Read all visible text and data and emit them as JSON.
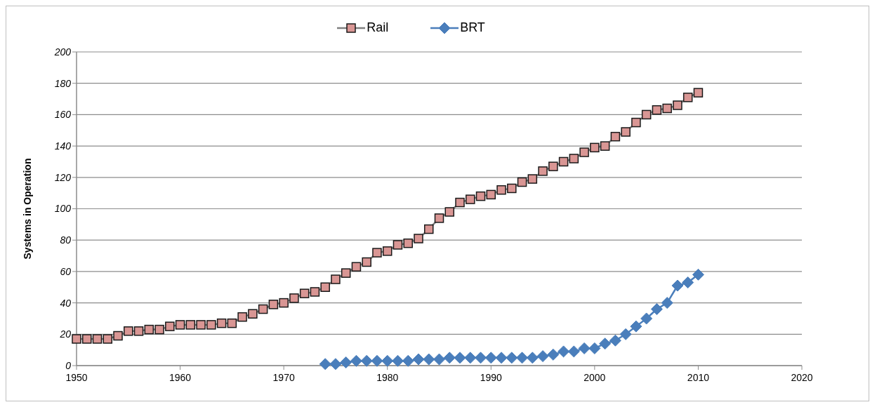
{
  "chart_data": {
    "type": "line",
    "ylabel": "Systems in Operation",
    "x": [
      1950,
      1951,
      1952,
      1953,
      1954,
      1955,
      1956,
      1957,
      1958,
      1959,
      1960,
      1961,
      1962,
      1963,
      1964,
      1965,
      1966,
      1967,
      1968,
      1969,
      1970,
      1971,
      1972,
      1973,
      1974,
      1975,
      1976,
      1977,
      1978,
      1979,
      1980,
      1981,
      1982,
      1983,
      1984,
      1985,
      1986,
      1987,
      1988,
      1989,
      1990,
      1991,
      1992,
      1993,
      1994,
      1995,
      1996,
      1997,
      1998,
      1999,
      2000,
      2001,
      2002,
      2003,
      2004,
      2005,
      2006,
      2007,
      2008,
      2009,
      2010
    ],
    "series": [
      {
        "name": "Rail",
        "color": "#d99694",
        "marker": "square",
        "values": [
          17,
          17,
          17,
          17,
          19,
          22,
          22,
          23,
          23,
          25,
          26,
          26,
          26,
          26,
          27,
          27,
          31,
          33,
          36,
          39,
          40,
          43,
          46,
          47,
          50,
          55,
          59,
          63,
          66,
          72,
          73,
          77,
          78,
          81,
          87,
          94,
          98,
          104,
          106,
          108,
          109,
          112,
          113,
          117,
          119,
          124,
          127,
          130,
          132,
          136,
          139,
          140,
          146,
          149,
          155,
          160,
          163,
          164,
          166,
          171,
          174
        ]
      },
      {
        "name": "BRT",
        "color": "#4a7ebb",
        "marker": "diamond",
        "values": [
          null,
          null,
          null,
          null,
          null,
          null,
          null,
          null,
          null,
          null,
          null,
          null,
          null,
          null,
          null,
          null,
          null,
          null,
          null,
          null,
          null,
          null,
          null,
          null,
          1,
          1,
          2,
          3,
          3,
          3,
          3,
          3,
          3,
          4,
          4,
          4,
          5,
          5,
          5,
          5,
          5,
          5,
          5,
          5,
          5,
          6,
          7,
          9,
          9,
          11,
          11,
          14,
          16,
          20,
          25,
          30,
          36,
          40,
          51,
          53,
          58
        ]
      }
    ],
    "xlim": [
      1950,
      2020
    ],
    "xticks": [
      1950,
      1960,
      1970,
      1980,
      1990,
      2000,
      2010,
      2020
    ],
    "ylim": [
      0,
      200
    ],
    "yticks": [
      0,
      20,
      40,
      60,
      80,
      100,
      120,
      140,
      160,
      180,
      200
    ],
    "grid": "y",
    "legend": "top"
  }
}
